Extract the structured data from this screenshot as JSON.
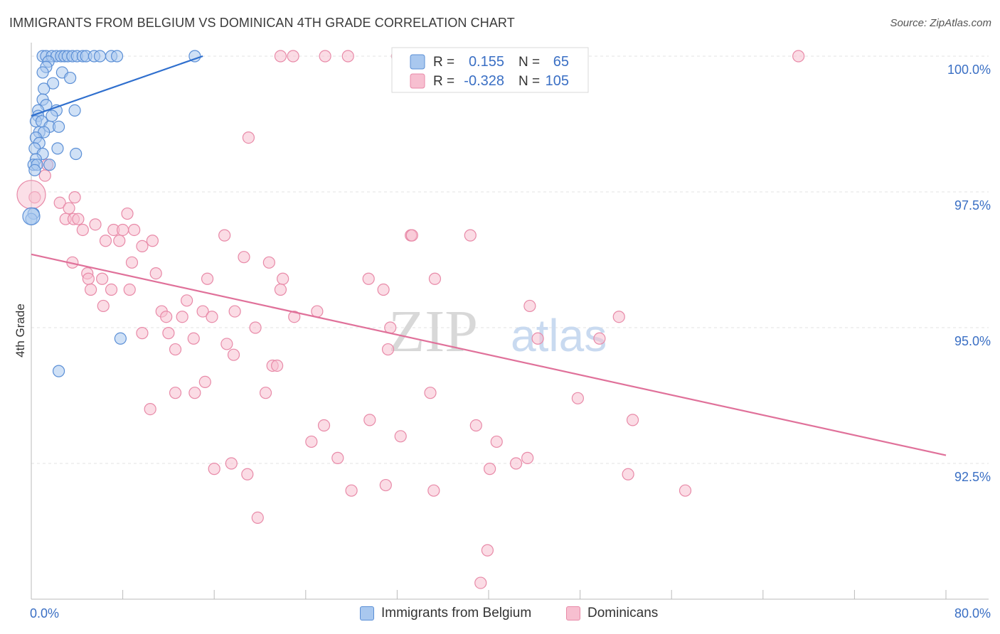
{
  "title": "IMMIGRANTS FROM BELGIUM VS DOMINICAN 4TH GRADE CORRELATION CHART",
  "source": "Source: ZipAtlas.com",
  "colors": {
    "blue_fill": "#a9c8ef",
    "blue_stroke": "#5b8fd6",
    "blue_line": "#2f6fce",
    "pink_fill": "#f7bfd0",
    "pink_stroke": "#e88aa8",
    "pink_line": "#e0719a",
    "grid": "#e3e3e3",
    "value_text": "#3a6fc4"
  },
  "legend": {
    "r_label": "R =",
    "n_label": "N =",
    "rows": [
      {
        "series": "Immigrants from Belgium",
        "r": "0.155",
        "n": "65"
      },
      {
        "series": "Dominicans",
        "r": "-0.328",
        "n": "105"
      }
    ]
  },
  "watermark": {
    "part1": "ZIP",
    "part2": "atlas"
  },
  "chart_data": {
    "type": "scatter",
    "title": "IMMIGRANTS FROM BELGIUM VS DOMINICAN 4TH GRADE CORRELATION CHART",
    "xlabel": "",
    "ylabel": "4th Grade",
    "xlim": [
      0,
      80
    ],
    "ylim": [
      90.0,
      100.25
    ],
    "x_tick_labels": [
      "0.0%",
      "80.0%"
    ],
    "y_ticks": [
      100.0,
      97.5,
      95.0,
      92.5
    ],
    "y_tick_labels": [
      "100.0%",
      "97.5%",
      "95.0%",
      "92.5%"
    ],
    "grid": true,
    "series": [
      {
        "name": "Immigrants from Belgium",
        "r": 0.155,
        "n": 65,
        "trend": {
          "x0": 0.0,
          "y0": 98.9,
          "x1": 15.0,
          "y1": 100.0
        },
        "points": [
          [
            1.0,
            100
          ],
          [
            1.3,
            100
          ],
          [
            1.8,
            100
          ],
          [
            2.2,
            100
          ],
          [
            2.6,
            100
          ],
          [
            2.9,
            100
          ],
          [
            3.2,
            100
          ],
          [
            3.6,
            100
          ],
          [
            4.0,
            100
          ],
          [
            4.5,
            100
          ],
          [
            4.8,
            100
          ],
          [
            5.5,
            100
          ],
          [
            6.0,
            100
          ],
          [
            7.0,
            100
          ],
          [
            7.5,
            100
          ],
          [
            14.3,
            100
          ],
          [
            1.5,
            99.9
          ],
          [
            1.3,
            99.8
          ],
          [
            1.0,
            99.7
          ],
          [
            2.7,
            99.7
          ],
          [
            3.4,
            99.6
          ],
          [
            1.9,
            99.5
          ],
          [
            1.1,
            99.4
          ],
          [
            1.0,
            99.2
          ],
          [
            1.3,
            99.1
          ],
          [
            0.6,
            99.0
          ],
          [
            2.2,
            99.0
          ],
          [
            3.8,
            99.0
          ],
          [
            0.6,
            98.9
          ],
          [
            1.8,
            98.9
          ],
          [
            0.4,
            98.8
          ],
          [
            0.9,
            98.8
          ],
          [
            1.6,
            98.7
          ],
          [
            2.4,
            98.7
          ],
          [
            0.7,
            98.6
          ],
          [
            1.1,
            98.6
          ],
          [
            0.4,
            98.5
          ],
          [
            0.7,
            98.4
          ],
          [
            2.3,
            98.3
          ],
          [
            0.3,
            98.3
          ],
          [
            1.0,
            98.2
          ],
          [
            3.9,
            98.2
          ],
          [
            0.4,
            98.1
          ],
          [
            0.2,
            98.0
          ],
          [
            0.5,
            98.0
          ],
          [
            1.6,
            98.0
          ],
          [
            0.3,
            97.9
          ],
          [
            0.2,
            97.1
          ],
          [
            0.0,
            97.0
          ],
          [
            7.8,
            94.8
          ],
          [
            2.4,
            94.2
          ]
        ]
      },
      {
        "name": "Dominicans",
        "r": -0.328,
        "n": 105,
        "trend": {
          "x0": 0.0,
          "y0": 96.35,
          "x1": 80.0,
          "y1": 92.65
        },
        "points": [
          [
            21.8,
            100
          ],
          [
            22.9,
            100
          ],
          [
            25.7,
            100
          ],
          [
            27.7,
            100
          ],
          [
            32.0,
            100
          ],
          [
            32.8,
            100
          ],
          [
            67.1,
            100
          ],
          [
            19.0,
            98.5
          ],
          [
            1.4,
            98.0
          ],
          [
            1.2,
            97.8
          ],
          [
            0.3,
            97.4
          ],
          [
            3.8,
            97.4
          ],
          [
            2.5,
            97.3
          ],
          [
            3.3,
            97.2
          ],
          [
            8.4,
            97.1
          ],
          [
            3.0,
            97.0
          ],
          [
            3.7,
            97.0
          ],
          [
            4.1,
            97.0
          ],
          [
            5.6,
            96.9
          ],
          [
            4.5,
            96.8
          ],
          [
            7.2,
            96.8
          ],
          [
            8.0,
            96.8
          ],
          [
            9.0,
            96.8
          ],
          [
            16.9,
            96.7
          ],
          [
            33.2,
            96.7
          ],
          [
            33.3,
            96.7
          ],
          [
            38.4,
            96.7
          ],
          [
            6.5,
            96.6
          ],
          [
            7.7,
            96.6
          ],
          [
            10.6,
            96.6
          ],
          [
            9.7,
            96.5
          ],
          [
            18.6,
            96.3
          ],
          [
            3.6,
            96.2
          ],
          [
            8.8,
            96.2
          ],
          [
            20.8,
            96.2
          ],
          [
            4.9,
            96.0
          ],
          [
            10.9,
            96.0
          ],
          [
            5.0,
            95.9
          ],
          [
            6.2,
            95.9
          ],
          [
            15.4,
            95.9
          ],
          [
            22.0,
            95.9
          ],
          [
            29.5,
            95.9
          ],
          [
            35.3,
            95.9
          ],
          [
            5.2,
            95.7
          ],
          [
            7.0,
            95.7
          ],
          [
            8.6,
            95.7
          ],
          [
            21.8,
            95.7
          ],
          [
            30.8,
            95.7
          ],
          [
            13.6,
            95.5
          ],
          [
            6.3,
            95.4
          ],
          [
            43.6,
            95.4
          ],
          [
            11.4,
            95.3
          ],
          [
            15.0,
            95.3
          ],
          [
            25.0,
            95.3
          ],
          [
            17.8,
            95.3
          ],
          [
            11.8,
            95.2
          ],
          [
            13.2,
            95.2
          ],
          [
            15.8,
            95.2
          ],
          [
            23.0,
            95.2
          ],
          [
            51.4,
            95.2
          ],
          [
            19.6,
            95.0
          ],
          [
            31.4,
            95.0
          ],
          [
            9.7,
            94.9
          ],
          [
            12.0,
            94.9
          ],
          [
            14.2,
            94.8
          ],
          [
            44.3,
            94.8
          ],
          [
            49.7,
            94.8
          ],
          [
            17.1,
            94.7
          ],
          [
            31.2,
            94.6
          ],
          [
            12.6,
            94.6
          ],
          [
            17.7,
            94.5
          ],
          [
            21.1,
            94.3
          ],
          [
            21.5,
            94.3
          ],
          [
            15.2,
            94.0
          ],
          [
            12.6,
            93.8
          ],
          [
            14.3,
            93.8
          ],
          [
            20.5,
            93.8
          ],
          [
            34.9,
            93.8
          ],
          [
            47.8,
            93.7
          ],
          [
            10.4,
            93.5
          ],
          [
            29.6,
            93.3
          ],
          [
            25.6,
            93.2
          ],
          [
            38.9,
            93.2
          ],
          [
            52.6,
            93.3
          ],
          [
            32.3,
            93.0
          ],
          [
            24.5,
            92.9
          ],
          [
            40.7,
            92.9
          ],
          [
            26.8,
            92.6
          ],
          [
            43.4,
            92.6
          ],
          [
            17.5,
            92.5
          ],
          [
            42.4,
            92.5
          ],
          [
            16.0,
            92.4
          ],
          [
            40.1,
            92.4
          ],
          [
            18.9,
            92.3
          ],
          [
            52.2,
            92.3
          ],
          [
            31.0,
            92.1
          ],
          [
            28.0,
            92.0
          ],
          [
            35.2,
            92.0
          ],
          [
            57.2,
            92.0
          ],
          [
            19.8,
            91.5
          ],
          [
            39.9,
            90.9
          ],
          [
            39.3,
            90.3
          ]
        ]
      }
    ]
  }
}
